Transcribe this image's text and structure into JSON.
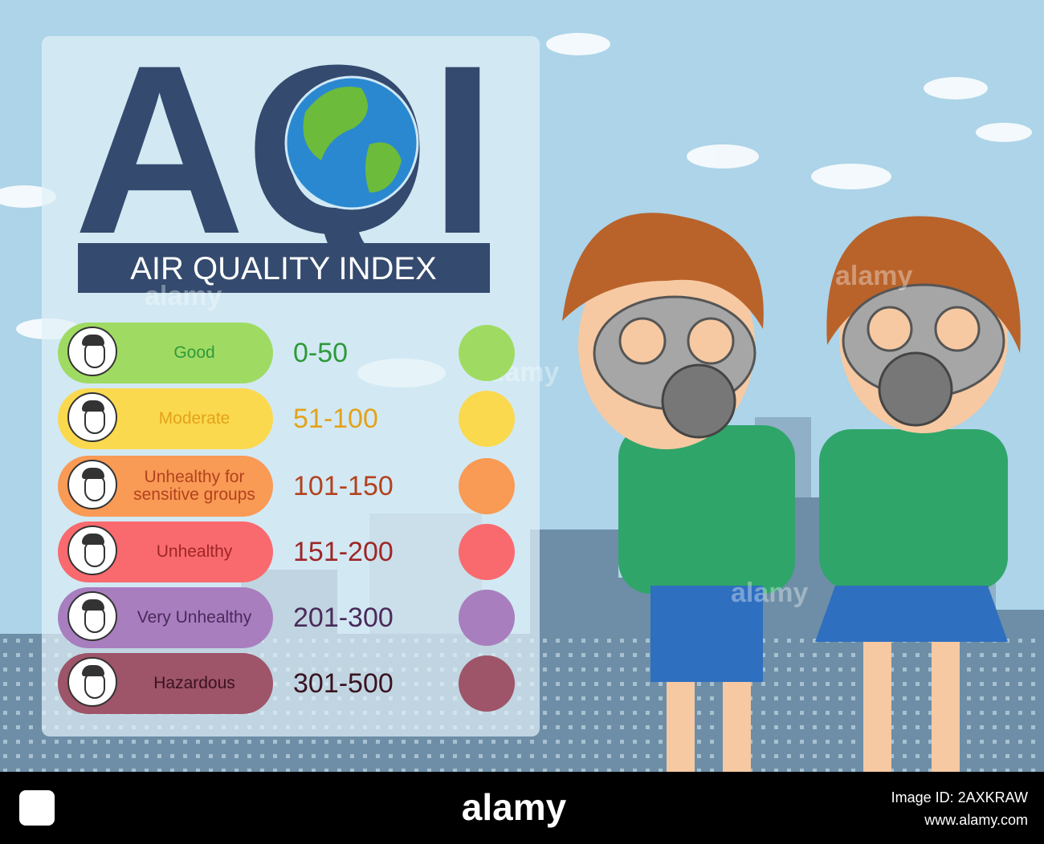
{
  "header": {
    "title": "AQI",
    "subtitle": "AIR QUALITY INDEX"
  },
  "levels": [
    {
      "label": "Good",
      "range": "0-50",
      "color": "#9fdb63",
      "text_color": "#2f9a3a"
    },
    {
      "label": "Moderate",
      "range": "51-100",
      "color": "#fbd94f",
      "text_color": "#e3a21a"
    },
    {
      "label": "Unhealthy for sensitive groups",
      "range": "101-150",
      "color": "#f99a55",
      "text_color": "#b3421e"
    },
    {
      "label": "Unhealthy",
      "range": "151-200",
      "color": "#f96a6e",
      "text_color": "#9e2626"
    },
    {
      "label": "Very Unhealthy",
      "range": "201-300",
      "color": "#a87ebf",
      "text_color": "#4a2a5a"
    },
    {
      "label": "Hazardous",
      "range": "301-500",
      "color": "#9e5469",
      "text_color": "#3a1320"
    }
  ],
  "watermark": "alamy",
  "footer": {
    "brand": "alamy",
    "image_id": "Image ID: 2AXKRAW",
    "url": "www.alamy.com"
  }
}
